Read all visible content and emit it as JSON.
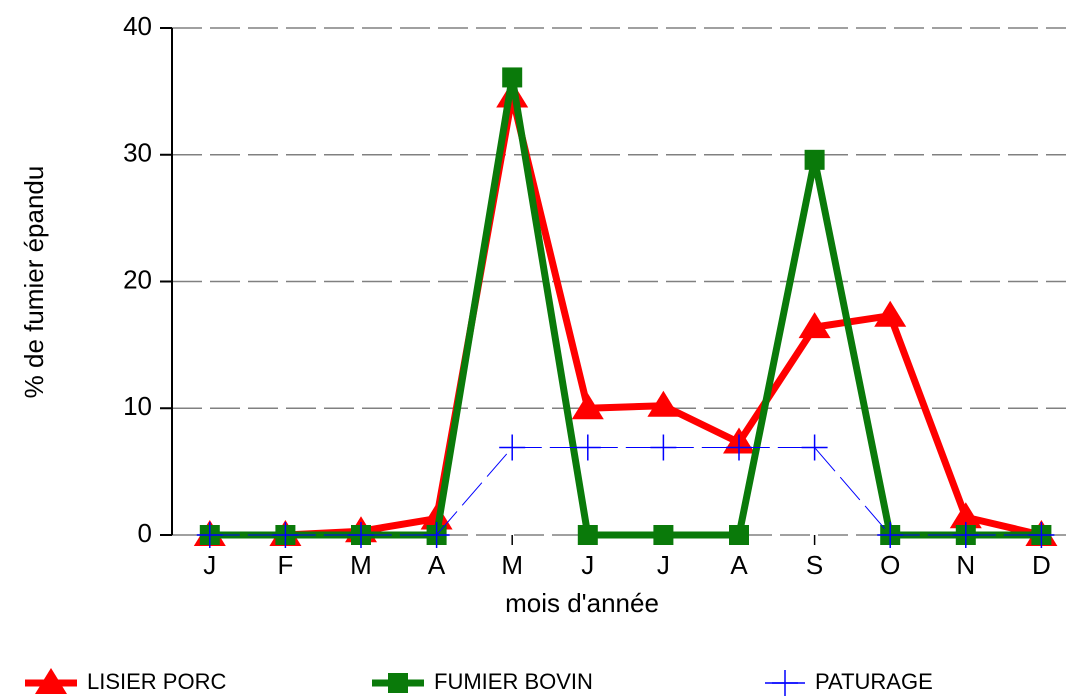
{
  "chart_data": {
    "type": "line",
    "xlabel": "mois d'année",
    "ylabel": "% de fumier épandu",
    "categories": [
      "J",
      "F",
      "M",
      "A",
      "M",
      "J",
      "J",
      "A",
      "S",
      "O",
      "N",
      "D"
    ],
    "series": [
      {
        "name": "LISIER PORC",
        "color": "#ff0000",
        "marker": "triangle",
        "dashed": false,
        "values": [
          0,
          0,
          0.3,
          1.3,
          34.6,
          10.0,
          10.2,
          7.3,
          16.4,
          17.3,
          1.4,
          0
        ]
      },
      {
        "name": "FUMIER BOVIN",
        "color": "#0a7a0a",
        "marker": "square",
        "dashed": false,
        "values": [
          0,
          0,
          0,
          0,
          36.1,
          0,
          0,
          0,
          29.6,
          0,
          0,
          0
        ]
      },
      {
        "name": "PATURAGE",
        "color": "#0000ff",
        "marker": "plus",
        "dashed": true,
        "values": [
          0,
          0,
          0,
          0,
          6.9,
          6.9,
          6.9,
          6.9,
          6.9,
          0,
          0,
          0
        ]
      }
    ],
    "ylim": [
      0,
      40
    ],
    "yticks": [
      0,
      10,
      20,
      30,
      40
    ],
    "grid": true
  }
}
